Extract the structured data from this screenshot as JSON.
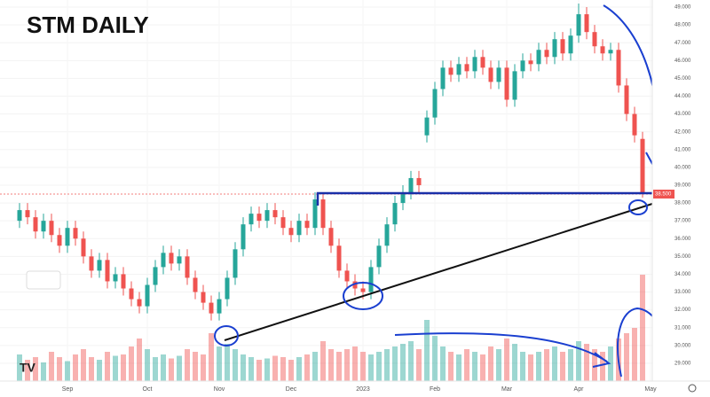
{
  "chart_data": {
    "type": "candlestick",
    "title": "STM DAILY",
    "open": [
      37.0,
      37.6,
      37.2,
      36.4,
      37.0,
      36.2,
      35.6,
      36.6,
      36.0,
      35.0,
      34.2,
      34.8,
      33.6,
      34.0,
      33.2,
      32.6,
      32.2,
      33.4,
      34.4,
      35.2,
      34.6,
      35.0,
      33.8,
      33.0,
      32.4,
      31.8,
      32.6,
      33.8,
      35.4,
      36.8,
      37.4,
      37.0,
      37.6,
      37.2,
      36.6,
      36.2,
      37.0,
      36.6,
      38.2,
      36.6,
      35.6,
      34.2,
      33.6,
      33.2,
      33.0,
      34.4,
      35.6,
      36.8,
      38.0,
      38.6,
      39.4,
      41.8,
      42.8,
      44.4,
      45.6,
      45.2,
      45.8,
      45.4,
      46.2,
      45.6,
      44.8,
      45.6,
      43.8,
      45.4,
      46.0,
      45.8,
      46.6,
      46.2,
      47.2,
      46.4,
      47.4,
      48.6,
      47.6,
      46.8,
      46.4,
      46.6,
      44.6,
      43.0,
      41.6
    ],
    "high": [
      38.0,
      38.0,
      37.6,
      37.4,
      37.4,
      36.6,
      37.0,
      37.0,
      36.4,
      35.4,
      35.2,
      35.2,
      34.4,
      34.4,
      33.6,
      33.0,
      33.8,
      34.8,
      35.6,
      35.6,
      35.4,
      35.4,
      34.2,
      33.4,
      32.8,
      33.0,
      34.2,
      35.8,
      37.2,
      37.8,
      37.8,
      38.0,
      38.0,
      37.6,
      37.0,
      37.4,
      37.4,
      38.6,
      38.6,
      37.0,
      36.0,
      34.6,
      34.0,
      33.6,
      34.8,
      36.0,
      37.2,
      38.4,
      39.0,
      39.8,
      39.8,
      43.2,
      44.8,
      46.0,
      46.0,
      46.2,
      46.2,
      46.6,
      46.6,
      46.0,
      46.0,
      46.0,
      45.8,
      46.4,
      46.4,
      47.0,
      47.0,
      47.6,
      47.6,
      47.8,
      49.2,
      49.0,
      48.0,
      47.2,
      47.0,
      47.0,
      45.0,
      43.4,
      42.0
    ],
    "low": [
      36.6,
      36.8,
      36.0,
      36.0,
      35.8,
      35.2,
      35.2,
      35.6,
      34.6,
      33.8,
      33.8,
      33.2,
      33.2,
      32.8,
      32.2,
      31.8,
      31.8,
      33.0,
      34.0,
      34.2,
      34.2,
      33.4,
      32.6,
      32.0,
      31.4,
      31.4,
      32.2,
      33.4,
      35.0,
      36.4,
      36.6,
      36.6,
      36.8,
      36.2,
      35.8,
      35.8,
      36.2,
      36.2,
      36.2,
      35.2,
      33.8,
      33.2,
      32.8,
      32.6,
      32.6,
      34.0,
      35.2,
      36.4,
      37.6,
      38.2,
      38.6,
      41.4,
      42.4,
      44.0,
      44.8,
      44.8,
      45.0,
      45.0,
      45.2,
      44.4,
      44.4,
      43.4,
      43.4,
      45.0,
      45.4,
      45.4,
      45.8,
      45.8,
      46.0,
      46.0,
      47.0,
      47.2,
      46.4,
      46.0,
      46.0,
      44.2,
      42.6,
      41.4,
      38.3
    ],
    "close": [
      37.6,
      37.2,
      36.4,
      37.0,
      36.2,
      35.6,
      36.6,
      36.0,
      35.0,
      34.2,
      34.8,
      33.6,
      34.0,
      33.2,
      32.6,
      32.2,
      33.4,
      34.4,
      35.2,
      34.6,
      35.0,
      33.8,
      33.0,
      32.4,
      31.8,
      32.6,
      33.8,
      35.4,
      36.8,
      37.4,
      37.0,
      37.6,
      37.2,
      36.6,
      36.2,
      37.0,
      36.6,
      38.2,
      36.6,
      35.6,
      34.2,
      33.6,
      33.2,
      33.0,
      34.4,
      35.6,
      36.8,
      38.0,
      38.6,
      39.4,
      39.0,
      42.8,
      44.4,
      45.6,
      45.2,
      45.8,
      45.4,
      46.2,
      45.6,
      44.8,
      45.6,
      43.8,
      45.4,
      46.0,
      45.8,
      46.6,
      46.2,
      47.2,
      46.4,
      47.4,
      48.6,
      47.6,
      46.8,
      46.4,
      46.6,
      44.6,
      43.0,
      41.8,
      38.5
    ],
    "volume": [
      2.0,
      1.6,
      1.8,
      1.4,
      2.2,
      1.8,
      1.5,
      2.0,
      2.4,
      1.8,
      1.6,
      2.2,
      1.9,
      2.0,
      2.6,
      3.2,
      2.4,
      1.8,
      2.0,
      1.7,
      1.9,
      2.4,
      2.2,
      2.0,
      3.6,
      2.6,
      2.8,
      2.4,
      2.0,
      1.8,
      1.6,
      1.7,
      1.9,
      1.8,
      1.6,
      1.8,
      2.0,
      2.2,
      3.0,
      2.4,
      2.2,
      2.4,
      2.6,
      2.2,
      2.0,
      2.2,
      2.4,
      2.6,
      2.8,
      3.0,
      2.4,
      4.6,
      3.4,
      2.6,
      2.2,
      2.0,
      2.4,
      2.2,
      2.0,
      2.6,
      2.4,
      3.2,
      2.8,
      2.2,
      2.0,
      2.2,
      2.4,
      2.6,
      2.2,
      2.4,
      3.0,
      2.8,
      2.4,
      2.2,
      2.6,
      3.2,
      3.6,
      4.0,
      8.0
    ],
    "up_color": "#26a69a",
    "down_color": "#ef5350",
    "ylim": [
      28,
      49.4
    ],
    "yticks": [
      {
        "value": 49,
        "label": "49.000"
      },
      {
        "value": 48,
        "label": "48.000"
      },
      {
        "value": 47,
        "label": "47.000"
      },
      {
        "value": 46,
        "label": "46.000"
      },
      {
        "value": 45,
        "label": "45.000"
      },
      {
        "value": 44,
        "label": "44.000"
      },
      {
        "value": 43,
        "label": "43.000"
      },
      {
        "value": 42,
        "label": "42.000"
      },
      {
        "value": 41,
        "label": "41.000"
      },
      {
        "value": 40,
        "label": "40.000"
      },
      {
        "value": 39,
        "label": "39.000"
      },
      {
        "value": 38,
        "label": "38.000"
      },
      {
        "value": 37,
        "label": "37.000"
      },
      {
        "value": 36,
        "label": "36.000"
      },
      {
        "value": 35,
        "label": "35.000"
      },
      {
        "value": 34,
        "label": "34.000"
      },
      {
        "value": 33,
        "label": "33.000"
      },
      {
        "value": 32,
        "label": "32.000"
      },
      {
        "value": 31,
        "label": "31.000"
      },
      {
        "value": 30,
        "label": "30.000"
      },
      {
        "value": 29,
        "label": "29.000"
      }
    ],
    "xticks": [
      {
        "value": 6,
        "label": "Sep"
      },
      {
        "value": 16,
        "label": "Oct"
      },
      {
        "value": 25,
        "label": "Nov"
      },
      {
        "value": 34,
        "label": "Dec"
      },
      {
        "value": 43,
        "label": "2023"
      },
      {
        "value": 52,
        "label": "Feb"
      },
      {
        "value": 61,
        "label": "Mar"
      },
      {
        "value": 70,
        "label": "Apr"
      },
      {
        "value": 79,
        "label": "May"
      }
    ],
    "last_price": {
      "value": 38.5,
      "label": "38.500"
    }
  }
}
